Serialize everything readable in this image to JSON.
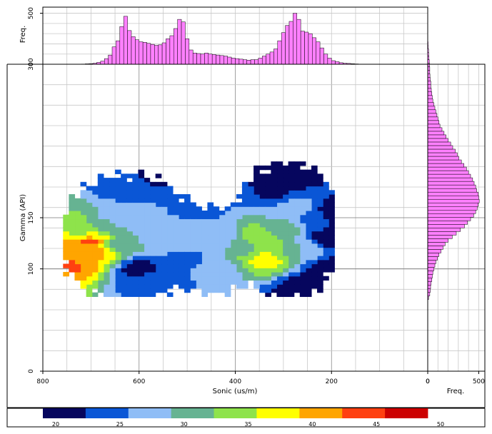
{
  "chart_data": [
    {
      "type": "heatmap",
      "title": "",
      "xlabel": "Sonic (us/m)",
      "ylabel": "Gamma (API)",
      "xlim": [
        800,
        0
      ],
      "ylim": [
        0,
        300
      ],
      "x_ticks": [
        800,
        600,
        400,
        200,
        0
      ],
      "x_tick_labels": [
        "800",
        "600",
        "400",
        "200",
        "0"
      ],
      "y_ticks": [
        0,
        100,
        150,
        300
      ],
      "y_tick_labels": [
        "0",
        "100",
        "150",
        "300"
      ],
      "grid": true,
      "density_cells": [
        {
          "x": 740,
          "y": 105,
          "v": 44
        },
        {
          "x": 730,
          "y": 125,
          "v": 43
        },
        {
          "x": 720,
          "y": 112,
          "v": 40
        },
        {
          "x": 700,
          "y": 128,
          "v": 46
        },
        {
          "x": 695,
          "y": 118,
          "v": 42
        },
        {
          "x": 690,
          "y": 132,
          "v": 38
        },
        {
          "x": 720,
          "y": 135,
          "v": 35
        },
        {
          "x": 670,
          "y": 140,
          "v": 31
        },
        {
          "x": 650,
          "y": 125,
          "v": 30
        },
        {
          "x": 640,
          "y": 150,
          "v": 28
        },
        {
          "x": 600,
          "y": 145,
          "v": 27
        },
        {
          "x": 560,
          "y": 130,
          "v": 29
        },
        {
          "x": 520,
          "y": 140,
          "v": 27
        },
        {
          "x": 500,
          "y": 110,
          "v": 26
        },
        {
          "x": 480,
          "y": 160,
          "v": 25
        },
        {
          "x": 450,
          "y": 125,
          "v": 28
        },
        {
          "x": 420,
          "y": 135,
          "v": 27
        },
        {
          "x": 380,
          "y": 120,
          "v": 33
        },
        {
          "x": 360,
          "y": 135,
          "v": 35
        },
        {
          "x": 340,
          "y": 110,
          "v": 38
        },
        {
          "x": 330,
          "y": 125,
          "v": 34
        },
        {
          "x": 300,
          "y": 140,
          "v": 31
        },
        {
          "x": 280,
          "y": 160,
          "v": 28
        },
        {
          "x": 260,
          "y": 120,
          "v": 30
        },
        {
          "x": 240,
          "y": 150,
          "v": 26
        },
        {
          "x": 210,
          "y": 130,
          "v": 21
        },
        {
          "x": 200,
          "y": 100,
          "v": 21
        },
        {
          "x": 190,
          "y": 155,
          "v": 20
        },
        {
          "x": 600,
          "y": 100,
          "v": 22
        },
        {
          "x": 580,
          "y": 90,
          "v": 24
        },
        {
          "x": 320,
          "y": 175,
          "v": 23
        },
        {
          "x": 290,
          "y": 190,
          "v": 22
        },
        {
          "x": 560,
          "y": 190,
          "v": 23
        },
        {
          "x": 620,
          "y": 180,
          "v": 24
        },
        {
          "x": 250,
          "y": 80,
          "v": 20
        },
        {
          "x": 450,
          "y": 100,
          "v": 27
        }
      ],
      "colorbar": {
        "min": 20,
        "max": 50,
        "tick_labels": [
          "20",
          "25",
          "30",
          "35",
          "40",
          "45",
          "50"
        ],
        "colors": [
          "#06065e",
          "#0a56d6",
          "#8fbdf6",
          "#66b392",
          "#8ee34b",
          "#ffff00",
          "#ffa500",
          "#ff4010",
          "#cc0000"
        ]
      }
    },
    {
      "type": "bar",
      "title": "",
      "xlabel": "",
      "ylabel": "Freq.",
      "orientation": "vertical",
      "y_tick_labels": [
        "0",
        "500"
      ],
      "ylim": [
        0,
        560
      ],
      "bar_color": "#ff80ff",
      "x_start": 720,
      "bin_width": 8,
      "values": [
        2,
        4,
        6,
        10,
        18,
        30,
        55,
        90,
        170,
        230,
        370,
        470,
        330,
        270,
        240,
        220,
        215,
        205,
        195,
        185,
        190,
        210,
        250,
        280,
        350,
        440,
        415,
        250,
        140,
        110,
        105,
        100,
        110,
        100,
        95,
        90,
        85,
        80,
        70,
        60,
        55,
        50,
        45,
        40,
        45,
        45,
        60,
        80,
        100,
        120,
        150,
        230,
        310,
        380,
        420,
        500,
        440,
        325,
        315,
        300,
        260,
        220,
        160,
        100,
        60,
        35,
        25,
        15,
        10,
        8,
        5,
        3
      ]
    },
    {
      "type": "bar",
      "title": "",
      "xlabel": "Freq.",
      "ylabel": "",
      "orientation": "horizontal",
      "x_tick_labels": [
        "0",
        "500"
      ],
      "xlim": [
        0,
        560
      ],
      "bar_color": "#ff80ff",
      "y_start": 70,
      "bin_width": 3.5,
      "values": [
        8,
        20,
        25,
        28,
        32,
        40,
        45,
        50,
        60,
        70,
        80,
        95,
        110,
        130,
        150,
        170,
        200,
        240,
        280,
        320,
        360,
        390,
        420,
        450,
        470,
        485,
        495,
        505,
        500,
        495,
        480,
        470,
        455,
        440,
        420,
        400,
        380,
        355,
        330,
        305,
        290,
        270,
        245,
        225,
        200,
        180,
        160,
        140,
        120,
        110,
        100,
        90,
        80,
        70,
        60,
        50,
        45,
        40,
        35,
        30,
        30,
        25,
        22,
        20,
        20,
        18,
        15,
        12,
        10,
        8,
        5,
        4
      ]
    }
  ]
}
